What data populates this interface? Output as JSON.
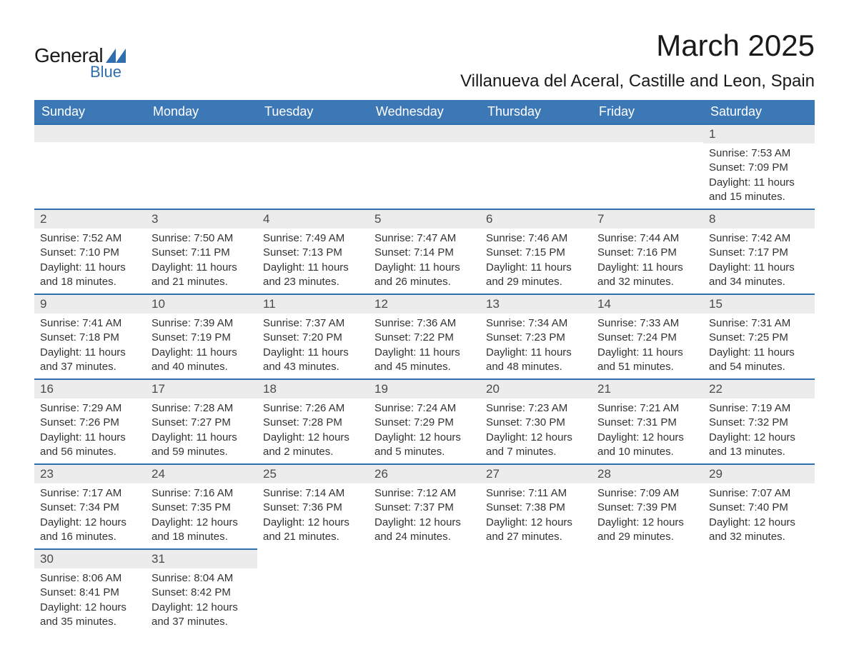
{
  "logo": {
    "text1": "General",
    "text2": "Blue",
    "shape_color": "#2f6fae"
  },
  "title": "March 2025",
  "location": "Villanueva del Aceral, Castille and Leon, Spain",
  "colors": {
    "header_bg": "#3b78b5",
    "header_text": "#ffffff",
    "row_divider": "#2f6fae",
    "daynum_bg": "#ececec",
    "daynum_text": "#4a4a4a",
    "body_text": "#333333",
    "background": "#ffffff"
  },
  "fonts": {
    "title_pt": 42,
    "location_pt": 24,
    "header_pt": 18,
    "daynum_pt": 17,
    "body_pt": 15
  },
  "weekdays": [
    "Sunday",
    "Monday",
    "Tuesday",
    "Wednesday",
    "Thursday",
    "Friday",
    "Saturday"
  ],
  "weeks": [
    [
      {
        "empty": true
      },
      {
        "empty": true
      },
      {
        "empty": true
      },
      {
        "empty": true
      },
      {
        "empty": true
      },
      {
        "empty": true
      },
      {
        "num": "1",
        "sunrise": "Sunrise: 7:53 AM",
        "sunset": "Sunset: 7:09 PM",
        "daylight": "Daylight: 11 hours and 15 minutes."
      }
    ],
    [
      {
        "num": "2",
        "sunrise": "Sunrise: 7:52 AM",
        "sunset": "Sunset: 7:10 PM",
        "daylight": "Daylight: 11 hours and 18 minutes."
      },
      {
        "num": "3",
        "sunrise": "Sunrise: 7:50 AM",
        "sunset": "Sunset: 7:11 PM",
        "daylight": "Daylight: 11 hours and 21 minutes."
      },
      {
        "num": "4",
        "sunrise": "Sunrise: 7:49 AM",
        "sunset": "Sunset: 7:13 PM",
        "daylight": "Daylight: 11 hours and 23 minutes."
      },
      {
        "num": "5",
        "sunrise": "Sunrise: 7:47 AM",
        "sunset": "Sunset: 7:14 PM",
        "daylight": "Daylight: 11 hours and 26 minutes."
      },
      {
        "num": "6",
        "sunrise": "Sunrise: 7:46 AM",
        "sunset": "Sunset: 7:15 PM",
        "daylight": "Daylight: 11 hours and 29 minutes."
      },
      {
        "num": "7",
        "sunrise": "Sunrise: 7:44 AM",
        "sunset": "Sunset: 7:16 PM",
        "daylight": "Daylight: 11 hours and 32 minutes."
      },
      {
        "num": "8",
        "sunrise": "Sunrise: 7:42 AM",
        "sunset": "Sunset: 7:17 PM",
        "daylight": "Daylight: 11 hours and 34 minutes."
      }
    ],
    [
      {
        "num": "9",
        "sunrise": "Sunrise: 7:41 AM",
        "sunset": "Sunset: 7:18 PM",
        "daylight": "Daylight: 11 hours and 37 minutes."
      },
      {
        "num": "10",
        "sunrise": "Sunrise: 7:39 AM",
        "sunset": "Sunset: 7:19 PM",
        "daylight": "Daylight: 11 hours and 40 minutes."
      },
      {
        "num": "11",
        "sunrise": "Sunrise: 7:37 AM",
        "sunset": "Sunset: 7:20 PM",
        "daylight": "Daylight: 11 hours and 43 minutes."
      },
      {
        "num": "12",
        "sunrise": "Sunrise: 7:36 AM",
        "sunset": "Sunset: 7:22 PM",
        "daylight": "Daylight: 11 hours and 45 minutes."
      },
      {
        "num": "13",
        "sunrise": "Sunrise: 7:34 AM",
        "sunset": "Sunset: 7:23 PM",
        "daylight": "Daylight: 11 hours and 48 minutes."
      },
      {
        "num": "14",
        "sunrise": "Sunrise: 7:33 AM",
        "sunset": "Sunset: 7:24 PM",
        "daylight": "Daylight: 11 hours and 51 minutes."
      },
      {
        "num": "15",
        "sunrise": "Sunrise: 7:31 AM",
        "sunset": "Sunset: 7:25 PM",
        "daylight": "Daylight: 11 hours and 54 minutes."
      }
    ],
    [
      {
        "num": "16",
        "sunrise": "Sunrise: 7:29 AM",
        "sunset": "Sunset: 7:26 PM",
        "daylight": "Daylight: 11 hours and 56 minutes."
      },
      {
        "num": "17",
        "sunrise": "Sunrise: 7:28 AM",
        "sunset": "Sunset: 7:27 PM",
        "daylight": "Daylight: 11 hours and 59 minutes."
      },
      {
        "num": "18",
        "sunrise": "Sunrise: 7:26 AM",
        "sunset": "Sunset: 7:28 PM",
        "daylight": "Daylight: 12 hours and 2 minutes."
      },
      {
        "num": "19",
        "sunrise": "Sunrise: 7:24 AM",
        "sunset": "Sunset: 7:29 PM",
        "daylight": "Daylight: 12 hours and 5 minutes."
      },
      {
        "num": "20",
        "sunrise": "Sunrise: 7:23 AM",
        "sunset": "Sunset: 7:30 PM",
        "daylight": "Daylight: 12 hours and 7 minutes."
      },
      {
        "num": "21",
        "sunrise": "Sunrise: 7:21 AM",
        "sunset": "Sunset: 7:31 PM",
        "daylight": "Daylight: 12 hours and 10 minutes."
      },
      {
        "num": "22",
        "sunrise": "Sunrise: 7:19 AM",
        "sunset": "Sunset: 7:32 PM",
        "daylight": "Daylight: 12 hours and 13 minutes."
      }
    ],
    [
      {
        "num": "23",
        "sunrise": "Sunrise: 7:17 AM",
        "sunset": "Sunset: 7:34 PM",
        "daylight": "Daylight: 12 hours and 16 minutes."
      },
      {
        "num": "24",
        "sunrise": "Sunrise: 7:16 AM",
        "sunset": "Sunset: 7:35 PM",
        "daylight": "Daylight: 12 hours and 18 minutes."
      },
      {
        "num": "25",
        "sunrise": "Sunrise: 7:14 AM",
        "sunset": "Sunset: 7:36 PM",
        "daylight": "Daylight: 12 hours and 21 minutes."
      },
      {
        "num": "26",
        "sunrise": "Sunrise: 7:12 AM",
        "sunset": "Sunset: 7:37 PM",
        "daylight": "Daylight: 12 hours and 24 minutes."
      },
      {
        "num": "27",
        "sunrise": "Sunrise: 7:11 AM",
        "sunset": "Sunset: 7:38 PM",
        "daylight": "Daylight: 12 hours and 27 minutes."
      },
      {
        "num": "28",
        "sunrise": "Sunrise: 7:09 AM",
        "sunset": "Sunset: 7:39 PM",
        "daylight": "Daylight: 12 hours and 29 minutes."
      },
      {
        "num": "29",
        "sunrise": "Sunrise: 7:07 AM",
        "sunset": "Sunset: 7:40 PM",
        "daylight": "Daylight: 12 hours and 32 minutes."
      }
    ],
    [
      {
        "num": "30",
        "sunrise": "Sunrise: 8:06 AM",
        "sunset": "Sunset: 8:41 PM",
        "daylight": "Daylight: 12 hours and 35 minutes."
      },
      {
        "num": "31",
        "sunrise": "Sunrise: 8:04 AM",
        "sunset": "Sunset: 8:42 PM",
        "daylight": "Daylight: 12 hours and 37 minutes."
      },
      {
        "empty": true,
        "noborder": true
      },
      {
        "empty": true,
        "noborder": true
      },
      {
        "empty": true,
        "noborder": true
      },
      {
        "empty": true,
        "noborder": true
      },
      {
        "empty": true,
        "noborder": true
      }
    ]
  ]
}
